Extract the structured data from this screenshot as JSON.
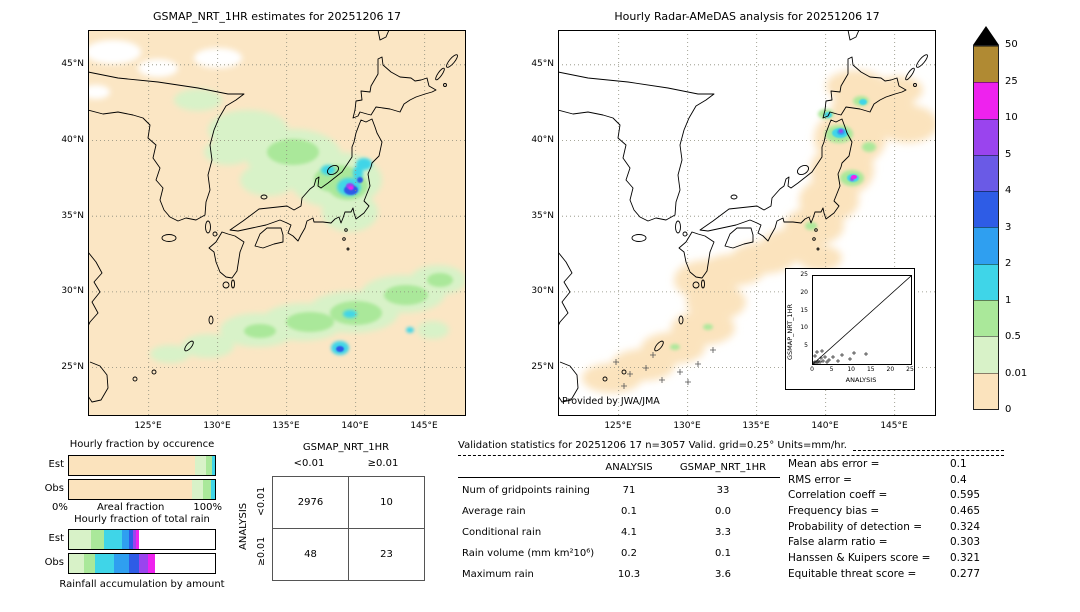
{
  "maps": {
    "left": {
      "title": "GSMAP_NRT_1HR estimates for 20251206 17",
      "lat_ticks": [
        "45°N",
        "40°N",
        "35°N",
        "30°N",
        "25°N"
      ],
      "lon_ticks": [
        "125°E",
        "130°E",
        "135°E",
        "140°E",
        "145°E"
      ]
    },
    "right": {
      "title": "Hourly Radar-AMeDAS analysis for 20251206 17",
      "credit": "Provided by JWA/JMA",
      "lat_ticks": [
        "45°N",
        "40°N",
        "35°N",
        "30°N",
        "25°N"
      ],
      "lon_ticks": [
        "125°E",
        "130°E",
        "135°E",
        "140°E",
        "145°E"
      ],
      "inset": {
        "ylabel": "GSMAP_NRT_1HR",
        "xlabel": "ANALYSIS",
        "x_ticks": [
          "0",
          "5",
          "10",
          "15",
          "20",
          "25"
        ],
        "y_ticks": [
          "25",
          "20",
          "15",
          "10",
          "5"
        ]
      }
    }
  },
  "colorbar": {
    "labels": [
      "50",
      "25",
      "10",
      "5",
      "4",
      "3",
      "2",
      "1",
      "0.5",
      "0.01",
      "0"
    ],
    "segments": [
      {
        "color": "#b08a33"
      },
      {
        "color": "#ee22ee"
      },
      {
        "color": "#9a44ee"
      },
      {
        "color": "#6a5ae6"
      },
      {
        "color": "#2e5ce6"
      },
      {
        "color": "#2f9ff0"
      },
      {
        "color": "#3fd5e8"
      },
      {
        "color": "#aae89a"
      },
      {
        "color": "#d8f2c8"
      },
      {
        "color": "#fbe3bd"
      }
    ],
    "arrow_color": "#000000",
    "units": "mm/hr"
  },
  "fractions": {
    "occurrence_title": "Hourly fraction by occurence",
    "areal_axis": {
      "left": "0%",
      "label": "Areal fraction",
      "right": "100%"
    },
    "total_title": "Hourly fraction of total rain",
    "caption": "Rainfall accumulation by amount",
    "row_labels": {
      "est": "Est",
      "obs": "Obs"
    },
    "occurrence": {
      "est": [
        {
          "color": "#fbe3bd",
          "pct": 86
        },
        {
          "color": "#d8f2c8",
          "pct": 8
        },
        {
          "color": "#aae89a",
          "pct": 4
        },
        {
          "color": "#3fd5e8",
          "pct": 2
        }
      ],
      "obs": [
        {
          "color": "#fbe3bd",
          "pct": 84
        },
        {
          "color": "#d8f2c8",
          "pct": 8
        },
        {
          "color": "#aae89a",
          "pct": 5
        },
        {
          "color": "#3fd5e8",
          "pct": 3
        }
      ]
    },
    "total": {
      "est": [
        {
          "color": "#d8f2c8",
          "pct": 15
        },
        {
          "color": "#aae89a",
          "pct": 9
        },
        {
          "color": "#3fd5e8",
          "pct": 12
        },
        {
          "color": "#2f9ff0",
          "pct": 5
        },
        {
          "color": "#2e5ce6",
          "pct": 3
        },
        {
          "color": "#9a44ee",
          "pct": 2
        },
        {
          "color": "#ee22ee",
          "pct": 2
        }
      ],
      "obs": [
        {
          "color": "#d8f2c8",
          "pct": 10
        },
        {
          "color": "#aae89a",
          "pct": 8
        },
        {
          "color": "#3fd5e8",
          "pct": 13
        },
        {
          "color": "#2f9ff0",
          "pct": 10
        },
        {
          "color": "#2e5ce6",
          "pct": 7
        },
        {
          "color": "#9a44ee",
          "pct": 6
        },
        {
          "color": "#ee22ee",
          "pct": 5
        }
      ]
    }
  },
  "contingency": {
    "col_group": "GSMAP_NRT_1HR",
    "row_group": "ANALYSIS",
    "col_labels": [
      "<0.01",
      "≥0.01"
    ],
    "row_labels": [
      "<0.01",
      "≥0.01"
    ],
    "cells": [
      [
        "2976",
        "10"
      ],
      [
        "48",
        "23"
      ]
    ]
  },
  "validation": {
    "title": "Validation statistics for 20251206 17  n=3057 Valid. grid=0.25° Units=mm/hr.",
    "col_headers": [
      "ANALYSIS",
      "GSMAP_NRT_1HR"
    ],
    "rows": [
      {
        "label": "Num of gridpoints raining",
        "analysis": "71",
        "gsmap": "33"
      },
      {
        "label": "Average rain",
        "analysis": "0.1",
        "gsmap": "0.0"
      },
      {
        "label": "Conditional rain",
        "analysis": "4.1",
        "gsmap": "3.3"
      },
      {
        "label": "Rain volume (mm km²10⁶)",
        "analysis": "0.2",
        "gsmap": "0.1"
      },
      {
        "label": "Maximum rain",
        "analysis": "10.3",
        "gsmap": "3.6"
      }
    ],
    "scores": [
      {
        "label": "Mean abs error =",
        "value": "0.1"
      },
      {
        "label": "RMS error =",
        "value": "0.4"
      },
      {
        "label": "Correlation coeff =",
        "value": "0.595"
      },
      {
        "label": "Frequency bias =",
        "value": "0.465"
      },
      {
        "label": "Probability of detection =",
        "value": "0.324"
      },
      {
        "label": "False alarm ratio =",
        "value": "0.303"
      },
      {
        "label": "Hanssen & Kuipers score =",
        "value": "0.321"
      },
      {
        "label": "Equitable threat score =",
        "value": "0.277"
      }
    ]
  },
  "chart_data": [
    {
      "type": "heatmap",
      "title": "GSMAP_NRT_1HR estimates for 20251206 17",
      "xlabel": "",
      "ylabel": "",
      "x_ticks": [
        "125°E",
        "130°E",
        "135°E",
        "140°E",
        "145°E"
      ],
      "y_ticks": [
        "45°N",
        "40°N",
        "35°N",
        "30°N",
        "25°N"
      ],
      "units": "mm/hr",
      "levels": [
        0,
        0.01,
        0.5,
        1,
        2,
        3,
        4,
        5,
        10,
        25,
        50
      ],
      "level_colors": [
        "#fbe3bd",
        "#d8f2c8",
        "#aae89a",
        "#3fd5e8",
        "#2f9ff0",
        "#2e5ce6",
        "#6a5ae6",
        "#9a44ee",
        "#ee22ee",
        "#b08a33"
      ]
    },
    {
      "type": "heatmap",
      "title": "Hourly Radar-AMeDAS analysis for 20251206 17",
      "x_ticks": [
        "125°E",
        "130°E",
        "135°E",
        "140°E",
        "145°E"
      ],
      "y_ticks": [
        "45°N",
        "40°N",
        "35°N",
        "30°N",
        "25°N"
      ],
      "units": "mm/hr",
      "annotation": "Provided by JWA/JMA"
    },
    {
      "type": "scatter",
      "title": "GSMAP_NRT_1HR vs ANALYSIS",
      "xlabel": "ANALYSIS",
      "ylabel": "GSMAP_NRT_1HR",
      "xlim": [
        0,
        25
      ],
      "ylim": [
        0,
        25
      ],
      "reference_line": "1:1 diagonal",
      "points_cluster": "most points below 5 mm/hr, few outliers to ~13"
    },
    {
      "type": "table",
      "title": "Contingency table (gridpoints)",
      "columns": [
        "GSMAP_NRT_1HR <0.01",
        "GSMAP_NRT_1HR ≥0.01"
      ],
      "row_labels": [
        "ANALYSIS <0.01",
        "ANALYSIS ≥0.01"
      ],
      "values": [
        [
          2976,
          10
        ],
        [
          48,
          23
        ]
      ]
    },
    {
      "type": "table",
      "title": "Validation statistics for 20251206 17  n=3057 Valid. grid=0.25° Units=mm/hr.",
      "columns": [
        "ANALYSIS",
        "GSMAP_NRT_1HR"
      ],
      "rows": [
        [
          "Num of gridpoints raining",
          71,
          33
        ],
        [
          "Average rain",
          0.1,
          0.0
        ],
        [
          "Conditional rain",
          4.1,
          3.3
        ],
        [
          "Rain volume (mm km²10⁶)",
          0.2,
          0.1
        ],
        [
          "Maximum rain",
          10.3,
          3.6
        ]
      ],
      "scores": {
        "mean_abs_error": 0.1,
        "rms_error": 0.4,
        "correlation_coeff": 0.595,
        "frequency_bias": 0.465,
        "probability_of_detection": 0.324,
        "false_alarm_ratio": 0.303,
        "hanssen_kuipers_score": 0.321,
        "equitable_threat_score": 0.277
      }
    }
  ]
}
